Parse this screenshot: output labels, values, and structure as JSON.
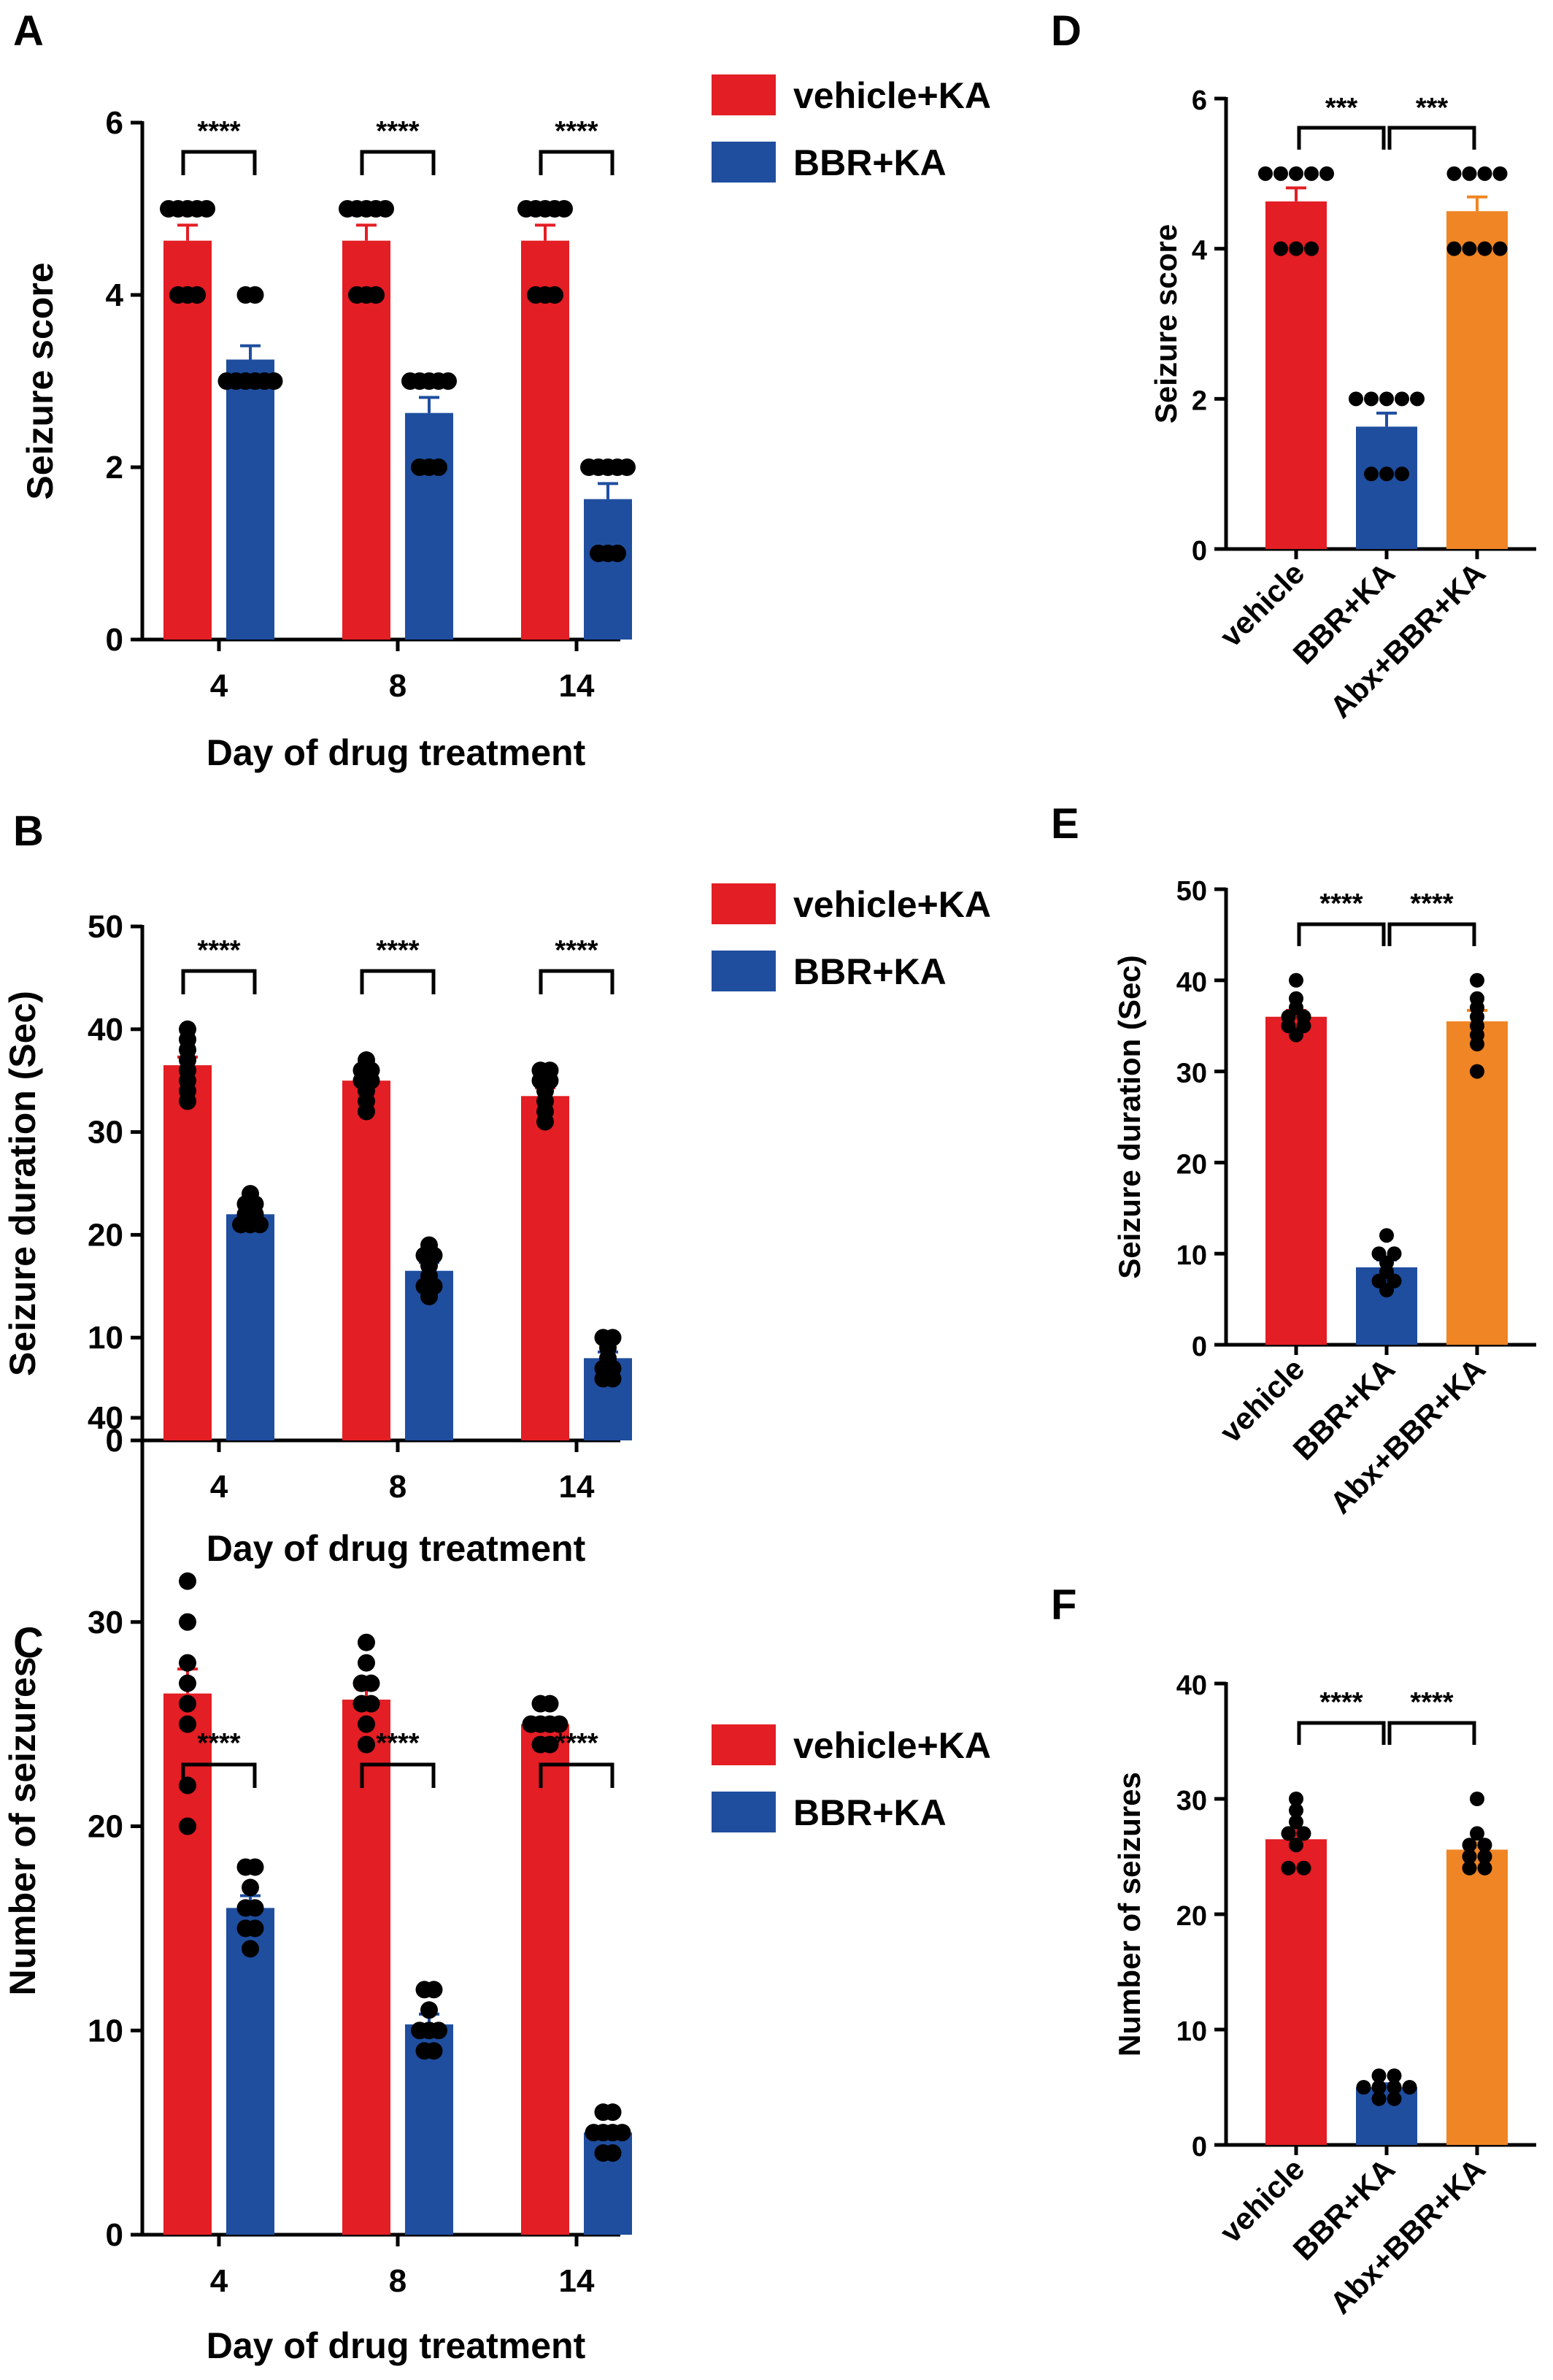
{
  "colors": {
    "vehicle": "#e31e24",
    "bbr": "#1f4e9f",
    "abx": "#ef8524",
    "axis": "#000000",
    "dot": "#000000"
  },
  "legend": [
    {
      "label": "vehicle+KA",
      "color": "#e31e24"
    },
    {
      "label": "BBR+KA",
      "color": "#1f4e9f"
    }
  ],
  "chart_data": [
    {
      "panel": "A",
      "type": "bar",
      "categories": [
        "4",
        "8",
        "14"
      ],
      "xlabel": "Day of drug treatment",
      "ylabel": "Seizure score",
      "ylim": [
        0,
        6
      ],
      "yticks": [
        0,
        2,
        4,
        6
      ],
      "series": [
        {
          "name": "vehicle+KA",
          "color": "#e31e24",
          "values": [
            4.63,
            4.63,
            4.63
          ],
          "sem": [
            0.18,
            0.18,
            0.18
          ],
          "points": [
            [
              4,
              4,
              4,
              5,
              5,
              5,
              5,
              5
            ],
            [
              4,
              4,
              4,
              5,
              5,
              5,
              5,
              5
            ],
            [
              4,
              4,
              4,
              5,
              5,
              5,
              5,
              5
            ]
          ]
        },
        {
          "name": "BBR+KA",
          "color": "#1f4e9f",
          "values": [
            3.25,
            2.63,
            1.63
          ],
          "sem": [
            0.16,
            0.18,
            0.18
          ],
          "points": [
            [
              3,
              3,
              3,
              3,
              3,
              3,
              4,
              4
            ],
            [
              2,
              2,
              2,
              3,
              3,
              3,
              3,
              3
            ],
            [
              1,
              1,
              1,
              2,
              2,
              2,
              2,
              2
            ]
          ]
        }
      ],
      "significance": [
        "****",
        "****",
        "****"
      ]
    },
    {
      "panel": "B",
      "type": "bar",
      "categories": [
        "4",
        "8",
        "14"
      ],
      "xlabel": "Day of drug treatment",
      "ylabel": "Seizure duration (Sec)",
      "ylim": [
        0,
        50
      ],
      "yticks": [
        0,
        10,
        20,
        30,
        40,
        50
      ],
      "series": [
        {
          "name": "vehicle+KA",
          "color": "#e31e24",
          "values": [
            36.5,
            35.0,
            33.5
          ],
          "sem": [
            0.8,
            0.7,
            0.8
          ],
          "points": [
            [
              33,
              34,
              35,
              36,
              37,
              38,
              39,
              40
            ],
            [
              32,
              33,
              34,
              35,
              35,
              36,
              36,
              37
            ],
            [
              31,
              32,
              33,
              34,
              35,
              35,
              36,
              36
            ]
          ]
        },
        {
          "name": "BBR+KA",
          "color": "#1f4e9f",
          "values": [
            22.0,
            16.5,
            8.0
          ],
          "sem": [
            0.5,
            0.8,
            0.6
          ],
          "points": [
            [
              21,
              21,
              21,
              22,
              22,
              23,
              23,
              24
            ],
            [
              14,
              15,
              15,
              16,
              17,
              18,
              18,
              19
            ],
            [
              6,
              6,
              7,
              7,
              8,
              9,
              10,
              10
            ]
          ]
        }
      ],
      "significance": [
        "****",
        "****",
        "****"
      ]
    },
    {
      "panel": "C",
      "type": "bar",
      "categories": [
        "4",
        "8",
        "14"
      ],
      "xlabel": "Day of drug treatment",
      "ylabel": "Number of seizures",
      "ylim": [
        0,
        40
      ],
      "yticks": [
        0,
        10,
        20,
        30,
        40
      ],
      "series": [
        {
          "name": "vehicle+KA",
          "color": "#e31e24",
          "values": [
            26.5,
            26.2,
            25.0
          ],
          "sem": [
            1.2,
            0.5,
            0.3
          ],
          "points": [
            [
              20,
              22,
              25,
              26,
              27,
              28,
              30,
              32
            ],
            [
              24,
              25,
              26,
              26,
              27,
              27,
              28,
              29
            ],
            [
              24,
              24,
              25,
              25,
              25,
              25,
              26,
              26
            ]
          ]
        },
        {
          "name": "BBR+KA",
          "color": "#1f4e9f",
          "values": [
            16.0,
            10.3,
            5.0
          ],
          "sem": [
            0.6,
            0.5,
            0.3
          ],
          "points": [
            [
              14,
              15,
              15,
              16,
              16,
              17,
              18,
              18
            ],
            [
              9,
              9,
              10,
              10,
              10,
              11,
              12,
              12
            ],
            [
              4,
              4,
              5,
              5,
              5,
              5,
              6,
              6
            ]
          ]
        }
      ],
      "significance": [
        "****",
        "****",
        "****"
      ]
    },
    {
      "panel": "D",
      "type": "bar",
      "categories": [
        "vehicle",
        "BBR+KA",
        "Abx+BBR+KA"
      ],
      "ylabel": "Seizure score",
      "ylim": [
        0,
        6
      ],
      "yticks": [
        0,
        2,
        4,
        6
      ],
      "values": [
        4.63,
        1.63,
        4.5
      ],
      "sem": [
        0.18,
        0.18,
        0.19
      ],
      "colors": [
        "#e31e24",
        "#1f4e9f",
        "#ef8524"
      ],
      "points": [
        [
          4,
          4,
          4,
          5,
          5,
          5,
          5,
          5
        ],
        [
          1,
          1,
          1,
          2,
          2,
          2,
          2,
          2
        ],
        [
          4,
          4,
          4,
          4,
          5,
          5,
          5,
          5
        ]
      ],
      "significance": [
        "***",
        "***"
      ]
    },
    {
      "panel": "E",
      "type": "bar",
      "categories": [
        "vehicle",
        "BBR+KA",
        "Abx+BBR+KA"
      ],
      "ylabel": "Seizure duration (Sec)",
      "ylim": [
        0,
        50
      ],
      "yticks": [
        0,
        10,
        20,
        30,
        40,
        50
      ],
      "values": [
        36.0,
        8.5,
        35.5
      ],
      "sem": [
        0.7,
        0.8,
        1.2
      ],
      "colors": [
        "#e31e24",
        "#1f4e9f",
        "#ef8524"
      ],
      "points": [
        [
          34,
          35,
          35,
          36,
          36,
          37,
          38,
          40
        ],
        [
          6,
          7,
          7,
          8,
          9,
          10,
          10,
          12
        ],
        [
          30,
          33,
          34,
          35,
          36,
          37,
          38,
          40
        ]
      ],
      "significance": [
        "****",
        "****"
      ]
    },
    {
      "panel": "F",
      "type": "bar",
      "categories": [
        "vehicle",
        "BBR+KA",
        "Abx+BBR+KA"
      ],
      "ylabel": "Number of seizures",
      "ylim": [
        0,
        40
      ],
      "yticks": [
        0,
        10,
        20,
        30,
        40
      ],
      "values": [
        26.5,
        5.0,
        25.6
      ],
      "sem": [
        0.8,
        0.3,
        0.6
      ],
      "colors": [
        "#e31e24",
        "#1f4e9f",
        "#ef8524"
      ],
      "points": [
        [
          24,
          24,
          26,
          27,
          27,
          28,
          29,
          30
        ],
        [
          4,
          4,
          5,
          5,
          5,
          5,
          6,
          6
        ],
        [
          24,
          24,
          25,
          25,
          26,
          26,
          27,
          30
        ]
      ],
      "significance": [
        "****",
        "****"
      ]
    }
  ]
}
